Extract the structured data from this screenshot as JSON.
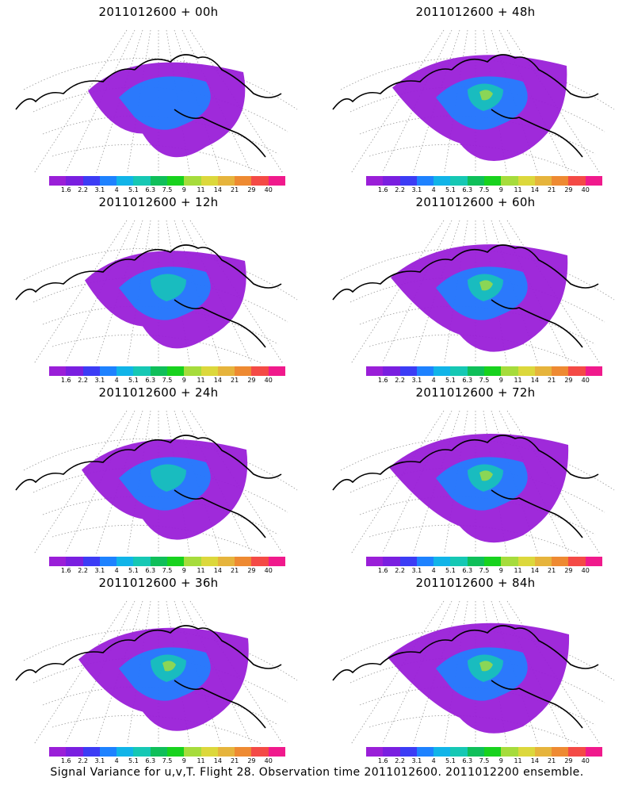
{
  "panels": [
    {
      "title": "2011012600 + 00h",
      "lead": 0,
      "level": 0.35
    },
    {
      "title": "2011012600 + 48h",
      "lead": 48,
      "level": 0.75
    },
    {
      "title": "2011012600 + 12h",
      "lead": 12,
      "level": 0.45
    },
    {
      "title": "2011012600 + 60h",
      "lead": 60,
      "level": 0.8
    },
    {
      "title": "2011012600 + 24h",
      "lead": 24,
      "level": 0.55
    },
    {
      "title": "2011012600 + 72h",
      "lead": 72,
      "level": 0.85
    },
    {
      "title": "2011012600 + 36h",
      "lead": 36,
      "level": 0.65
    },
    {
      "title": "2011012600 + 84h",
      "lead": 84,
      "level": 0.9
    }
  ],
  "colorbar": {
    "ticks": [
      "1.6",
      "2.2",
      "3.1",
      "4",
      "5.1",
      "6.3",
      "7.5",
      "9",
      "11",
      "14",
      "21",
      "29",
      "40"
    ],
    "colors": [
      "#9a1fd8",
      "#7a1fe0",
      "#3c3cf5",
      "#1e82ff",
      "#11b4e8",
      "#16c8b4",
      "#0fbf5a",
      "#18d21e",
      "#a6dc3c",
      "#dcd83c",
      "#e6b43c",
      "#ee8a32",
      "#f44a46",
      "#f01a8c"
    ]
  },
  "caption": "Signal Variance for u,v,T. Flight 28. Observation time 2011012600. 2011012200 ensemble."
}
